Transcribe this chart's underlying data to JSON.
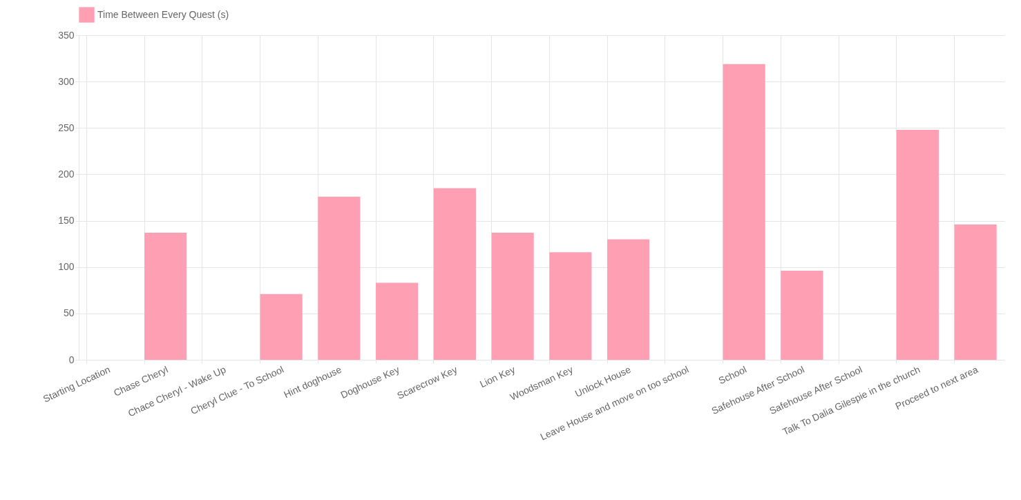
{
  "chart_data": {
    "type": "bar",
    "categories": [
      "Starting Location",
      "Chase Cheryl",
      "Chace Cheryl - Wake Up",
      "Cheryl Clue - To School",
      "Hint doghouse",
      "Doghouse Key",
      "Scarecrow Key",
      "Lion Key",
      "Woodsman Key",
      "Unlock House",
      "Leave House and move on too school",
      "School",
      "Safehouse After School",
      "Safehouse After School",
      "Talk To Dalia Gilespie in the church",
      "Proceed to next area"
    ],
    "series": [
      {
        "name": "Time Between Every Quest (s)",
        "color": "#ff9fb3",
        "values": [
          0,
          137,
          0,
          71,
          176,
          83,
          185,
          137,
          116,
          130,
          0,
          319,
          96,
          0,
          248,
          146
        ]
      }
    ],
    "ylim": [
      0,
      350
    ],
    "yticks": [
      0,
      50,
      100,
      150,
      200,
      250,
      300,
      350
    ],
    "grid": true,
    "legend": "top"
  }
}
